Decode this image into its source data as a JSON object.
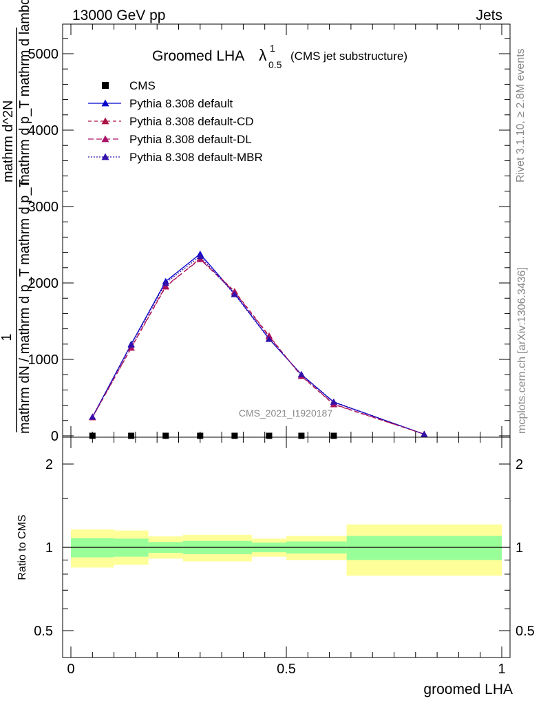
{
  "header": {
    "left": "13000 GeV pp",
    "right": "Jets"
  },
  "title": {
    "main": "Groomed LHA",
    "lambda": "λ",
    "sup": "1",
    "sub": "0.5",
    "paren": "(CMS jet substructure)"
  },
  "side_text": {
    "rivet": "Rivet 3.1.10, ≥ 2.8M events",
    "mcplots": "mcplots.cern.ch [arXiv:1306.3436]"
  },
  "watermark": "CMS_2021_I1920187",
  "colors": {
    "default": "#0000cc",
    "cd": "#aa1144",
    "dl": "#aa1166",
    "mbr": "#3311aa",
    "band_yellow": "#ffff99",
    "band_green": "#99ff99"
  },
  "chart_data": [
    {
      "type": "line",
      "ylabel_lines": [
        "1",
        "mathrm dN / mathrm d p_T mathrm d p_T",
        "mathrm d^2N",
        "mathrm d p_T mathrm d lambda"
      ],
      "xlim": [
        0,
        1
      ],
      "ylim": [
        0,
        5400
      ],
      "yticks": [
        0,
        1000,
        2000,
        3000,
        4000,
        5000
      ],
      "ytick_labels": [
        "0",
        "1000",
        "2000",
        "3000",
        "4000",
        "5000"
      ],
      "x": [
        0.05,
        0.14,
        0.22,
        0.3,
        0.38,
        0.46,
        0.535,
        0.61,
        0.82
      ],
      "series": [
        {
          "name": "CMS",
          "marker": "square",
          "values": [
            0,
            0,
            0,
            0,
            0,
            0,
            0,
            0,
            null
          ]
        },
        {
          "name": "Pythia 8.308 default",
          "style": "solid",
          "values": [
            245,
            1200,
            2020,
            2380,
            1860,
            1270,
            800,
            440,
            20
          ]
        },
        {
          "name": "Pythia 8.308 default-CD",
          "style": "dashed",
          "values": [
            240,
            1150,
            1950,
            2320,
            1890,
            1310,
            780,
            410,
            22
          ]
        },
        {
          "name": "Pythia 8.308 default-DL",
          "style": "dashed",
          "values": [
            242,
            1155,
            1960,
            2310,
            1880,
            1300,
            785,
            415,
            22
          ]
        },
        {
          "name": "Pythia 8.308 default-MBR",
          "style": "dotted",
          "values": [
            248,
            1190,
            2000,
            2350,
            1850,
            1265,
            805,
            445,
            21
          ]
        }
      ]
    },
    {
      "type": "area",
      "ylabel": "Ratio to CMS",
      "xlabel": "groomed LHA",
      "xlim": [
        0,
        1
      ],
      "ylim": [
        0.4,
        2.3
      ],
      "log_y": true,
      "yticks": [
        0.5,
        1,
        2
      ],
      "ytick_labels": [
        "0.5",
        "1",
        "2"
      ],
      "xticks": [
        0,
        0.5,
        1
      ],
      "xtick_labels": [
        "0",
        "0.5",
        "1"
      ],
      "bins": [
        {
          "x0": 0.0,
          "x1": 0.1,
          "y_lo": 0.845,
          "y_hi": 1.16,
          "g_lo": 0.92,
          "g_hi": 1.08
        },
        {
          "x0": 0.1,
          "x1": 0.18,
          "y_lo": 0.865,
          "y_hi": 1.15,
          "g_lo": 0.925,
          "g_hi": 1.075
        },
        {
          "x0": 0.18,
          "x1": 0.26,
          "y_lo": 0.91,
          "y_hi": 1.095,
          "g_lo": 0.955,
          "g_hi": 1.045
        },
        {
          "x0": 0.26,
          "x1": 0.42,
          "y_lo": 0.89,
          "y_hi": 1.11,
          "g_lo": 0.945,
          "g_hi": 1.055
        },
        {
          "x0": 0.42,
          "x1": 0.5,
          "y_lo": 0.925,
          "y_hi": 1.075,
          "g_lo": 0.96,
          "g_hi": 1.04
        },
        {
          "x0": 0.5,
          "x1": 0.64,
          "y_lo": 0.9,
          "y_hi": 1.1,
          "g_lo": 0.95,
          "g_hi": 1.05
        },
        {
          "x0": 0.64,
          "x1": 1.0,
          "y_lo": 0.79,
          "y_hi": 1.21,
          "g_lo": 0.9,
          "g_hi": 1.1
        }
      ],
      "reference": 1
    }
  ]
}
